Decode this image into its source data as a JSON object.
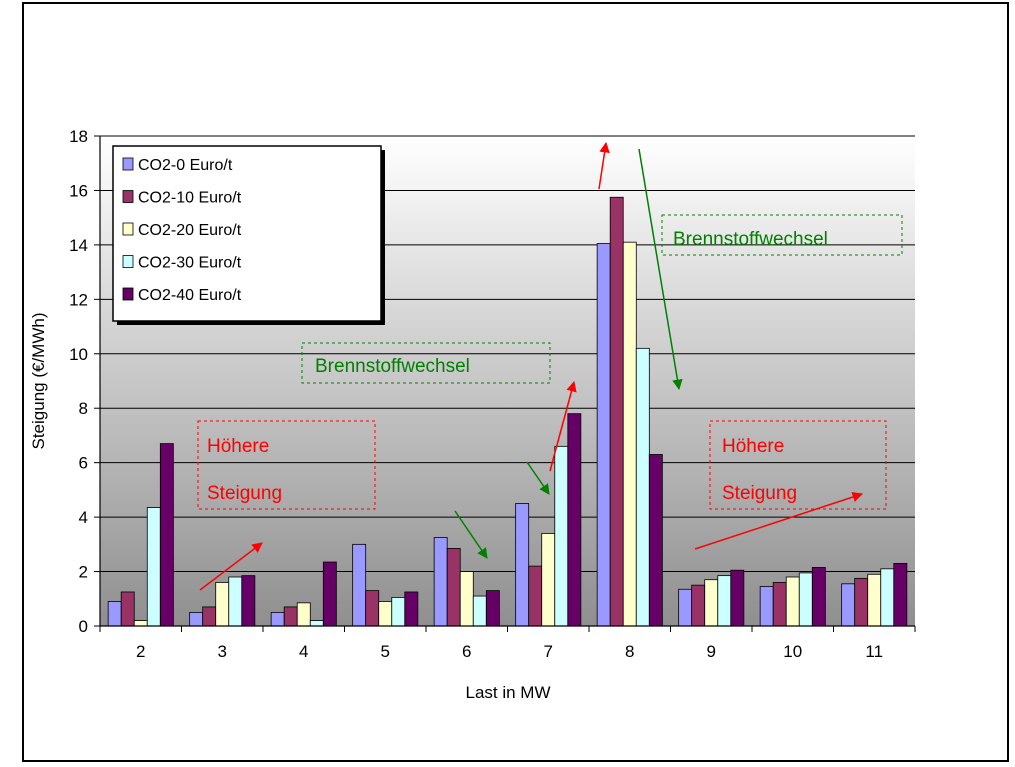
{
  "chart_data": {
    "type": "bar",
    "categories": [
      "2",
      "3",
      "4",
      "5",
      "6",
      "7",
      "8",
      "9",
      "10",
      "11"
    ],
    "series": [
      {
        "name": "CO2-0 Euro/t",
        "color": "#9999ff",
        "values": [
          0.9,
          0.5,
          0.5,
          3.0,
          3.25,
          4.5,
          14.05,
          1.35,
          1.45,
          1.55
        ]
      },
      {
        "name": "CO2-10 Euro/t",
        "color": "#993366",
        "values": [
          1.25,
          0.7,
          0.7,
          1.3,
          2.85,
          2.2,
          15.75,
          1.5,
          1.6,
          1.75
        ]
      },
      {
        "name": "CO2-20 Euro/t",
        "color": "#ffffcc",
        "values": [
          0.2,
          1.6,
          0.85,
          0.9,
          2.0,
          3.4,
          14.1,
          1.7,
          1.8,
          1.9
        ]
      },
      {
        "name": "CO2-30 Euro/t",
        "color": "#ccffff",
        "values": [
          4.35,
          1.8,
          0.2,
          1.05,
          1.1,
          6.6,
          10.2,
          1.85,
          1.95,
          2.1
        ]
      },
      {
        "name": "CO2-40 Euro/t",
        "color": "#660066",
        "values": [
          6.7,
          1.85,
          2.35,
          1.25,
          1.3,
          7.8,
          6.3,
          2.05,
          2.15,
          2.3
        ]
      }
    ],
    "xlabel": "Last in MW",
    "ylabel": "Steigung (€/MWh)",
    "ylim": [
      0,
      18
    ],
    "yticks": [
      "0",
      "2",
      "4",
      "6",
      "8",
      "10",
      "12",
      "14",
      "16",
      "18"
    ],
    "grid": true,
    "legend_position": "top-left",
    "annotations": [
      {
        "lines": [
          "Höhere",
          "Steigung"
        ],
        "color": "#ff0000"
      },
      {
        "lines": [
          "Brennstoffwechsel"
        ],
        "color": "#008000"
      },
      {
        "lines": [
          "Brennstoffwechsel"
        ],
        "color": "#008000"
      },
      {
        "lines": [
          "Höhere",
          "Steigung"
        ],
        "color": "#ff0000"
      }
    ],
    "arrow_colors": {
      "red": "#ff0000",
      "green": "#008000"
    }
  }
}
